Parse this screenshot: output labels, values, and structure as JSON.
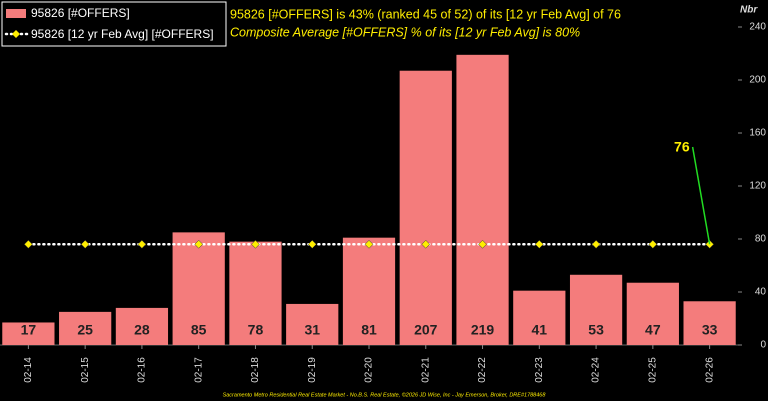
{
  "chart_data": {
    "type": "bar",
    "title": "95826 [#OFFERS] is 43% (ranked 45 of 52) of its [12 yr Feb Avg] of 76",
    "subtitle": "Composite Average [#OFFERS] % of its [12 yr Feb Avg] is 80%",
    "y_label": "Nbr",
    "footer": "Sacramento Metro Residential Real Estate Market - No.B.S. Real Estate, ©2026 JD Wise, Inc - Jay Emerson, Broker, DRE#1788468",
    "categories": [
      "02-14",
      "02-15",
      "02-16",
      "02-17",
      "02-18",
      "02-19",
      "02-20",
      "02-21",
      "02-22",
      "02-23",
      "02-24",
      "02-25",
      "02-26"
    ],
    "series": [
      {
        "name": "95826 [#OFFERS]",
        "color": "#f47c7c",
        "type": "bar",
        "values": [
          17,
          25,
          28,
          85,
          78,
          31,
          81,
          207,
          219,
          41,
          53,
          47,
          33
        ]
      },
      {
        "name": "95826 [12 yr Feb Avg] [#OFFERS]",
        "color": "#ffee00",
        "type": "line",
        "values": [
          76,
          76,
          76,
          76,
          76,
          76,
          76,
          76,
          76,
          76,
          76,
          76,
          76
        ]
      }
    ],
    "ylim": [
      0,
      240
    ],
    "yticks": [
      0,
      40,
      80,
      120,
      160,
      200,
      240
    ],
    "legend": "top-left"
  }
}
